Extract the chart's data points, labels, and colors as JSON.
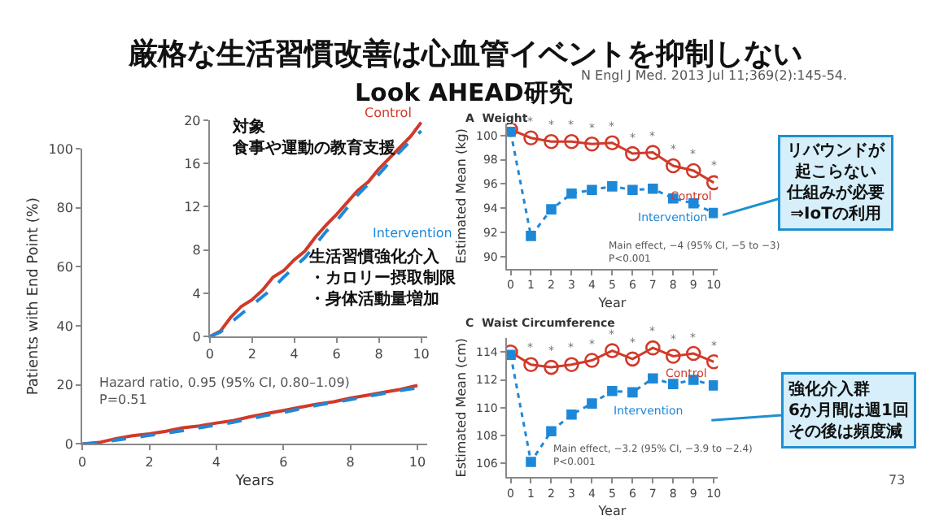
{
  "chart_data": [
    {
      "type": "line",
      "title": "厳格な生活習慣改善は心血管イベントを抑制しない",
      "subtitle": "Look AHEAD研究",
      "xlabel": "Years",
      "ylabel": "Patients with End Point (%)",
      "xlim": [
        0,
        10.3
      ],
      "ylim": [
        0,
        100
      ],
      "xticks": [
        0,
        2,
        4,
        6,
        8,
        10
      ],
      "yticks": [
        0,
        20,
        40,
        60,
        80,
        100
      ],
      "grid": false,
      "legend": false,
      "marker": "none",
      "annotations": [
        "N Engl J Med. 2013 Jul 11;369(2):145-54.",
        "73",
        "Hazard ratio, 0.95 (95% CI, 0.80–1.09)\nP=0.51"
      ],
      "x": [
        0,
        0.5,
        1,
        1.5,
        2,
        2.5,
        3,
        3.5,
        4,
        4.5,
        5,
        5.5,
        6,
        6.5,
        7,
        7.5,
        8,
        8.5,
        9,
        9.5,
        10
      ],
      "series": [
        {
          "color": "#d03a2a",
          "line_style": "solid",
          "values": [
            0,
            0.5,
            1.8,
            2.8,
            3.4,
            4.3,
            5.5,
            6.1,
            7.1,
            7.9,
            9.2,
            10.3,
            11.3,
            12.4,
            13.5,
            14.3,
            15.5,
            16.5,
            17.5,
            18.5,
            19.8
          ]
        },
        {
          "color": "#1e88d8",
          "line_style": "dashed",
          "values": [
            0,
            0.4,
            1.3,
            2.1,
            2.9,
            3.7,
            4.5,
            5.5,
            6.4,
            7.3,
            8.5,
            9.7,
            10.7,
            11.9,
            13.1,
            14.1,
            15.0,
            16.1,
            17.1,
            18.1,
            19.0
          ]
        }
      ]
    },
    {
      "type": "line",
      "xlim": [
        0,
        10.3
      ],
      "ylim": [
        0,
        20
      ],
      "xticks": [
        0,
        2,
        4,
        6,
        8,
        10
      ],
      "yticks": [
        0,
        4,
        8,
        12,
        16,
        20
      ],
      "grid": false,
      "legend": false,
      "marker": "none",
      "annotations": [
        "対象食事や運動の教育支援",
        "生活習慣強化介入・カロリー摂取制限・身体活動量増加"
      ],
      "x": [
        0,
        0.5,
        1,
        1.5,
        2,
        2.5,
        3,
        3.5,
        4,
        4.5,
        5,
        5.5,
        6,
        6.5,
        7,
        7.5,
        8,
        8.5,
        9,
        9.5,
        10
      ],
      "series": [
        {
          "name": "Control",
          "color": "#d03a2a",
          "line_style": "solid",
          "values": [
            0,
            0.5,
            1.8,
            2.8,
            3.4,
            4.3,
            5.5,
            6.1,
            7.1,
            7.9,
            9.2,
            10.3,
            11.3,
            12.4,
            13.5,
            14.3,
            15.5,
            16.5,
            17.5,
            18.5,
            19.8
          ]
        },
        {
          "name": "Intervention",
          "color": "#1e88d8",
          "line_style": "dashed",
          "values": [
            0,
            0.4,
            1.3,
            2.1,
            2.9,
            3.7,
            4.5,
            5.5,
            6.4,
            7.3,
            8.5,
            9.7,
            10.7,
            11.9,
            13.1,
            14.1,
            15.0,
            16.1,
            17.1,
            18.1,
            19.0
          ]
        }
      ]
    },
    {
      "type": "line",
      "title": "A  Weight",
      "xlabel": "Year",
      "ylabel": "Estimated Mean (kg)",
      "xlim": [
        -0.2,
        10.2
      ],
      "ylim": [
        89,
        101
      ],
      "xticks": [
        0,
        1,
        2,
        3,
        4,
        5,
        6,
        7,
        8,
        9,
        10
      ],
      "yticks": [
        90,
        92,
        94,
        96,
        98,
        100
      ],
      "grid": false,
      "legend": false,
      "annotations": [
        "Main effect, −4 (95% CI, −5 to −3)\nP<0.001",
        "リバウンドが起こらない仕組みが必要⇒IoTの利用",
        "*",
        "*",
        "*",
        "*",
        "*",
        "*",
        "*",
        "*",
        "*",
        "*"
      ],
      "x": [
        0,
        1,
        2,
        3,
        4,
        5,
        6,
        7,
        8,
        9,
        10
      ],
      "series": [
        {
          "name": "Control",
          "color": "#d03a2a",
          "line_style": "solid",
          "marker": "circle",
          "values": [
            100.5,
            99.8,
            99.5,
            99.5,
            99.3,
            99.4,
            98.5,
            98.6,
            97.5,
            97.1,
            96.1
          ]
        },
        {
          "name": "Intervention",
          "color": "#1e88d8",
          "line_style": "dotted",
          "marker": "square",
          "values": [
            100.3,
            91.7,
            93.9,
            95.2,
            95.5,
            95.8,
            95.5,
            95.6,
            94.8,
            94.4,
            93.6
          ]
        }
      ]
    },
    {
      "type": "line",
      "title": "C  Waist Circumference",
      "xlabel": "Year",
      "ylabel": "Estimated Mean (cm)",
      "xlim": [
        -0.2,
        10.2
      ],
      "ylim": [
        105,
        115
      ],
      "xticks": [
        0,
        1,
        2,
        3,
        4,
        5,
        6,
        7,
        8,
        9,
        10
      ],
      "yticks": [
        106,
        108,
        110,
        112,
        114
      ],
      "grid": false,
      "legend": false,
      "annotations": [
        "Main effect, −3.2 (95% CI, −3.9 to −2.4)\nP<0.001",
        "強化介入群6か月間は週1回その後は頻度減",
        "*",
        "*",
        "*",
        "*",
        "*",
        "*",
        "*",
        "*",
        "*",
        "*"
      ],
      "x": [
        0,
        1,
        2,
        3,
        4,
        5,
        6,
        7,
        8,
        9,
        10
      ],
      "series": [
        {
          "name": "Control",
          "color": "#d03a2a",
          "line_style": "solid",
          "marker": "circle",
          "values": [
            114.0,
            113.1,
            112.9,
            113.1,
            113.4,
            114.1,
            113.5,
            114.3,
            113.7,
            113.9,
            113.3
          ]
        },
        {
          "name": "Intervention",
          "color": "#1e88d8",
          "line_style": "dotted",
          "marker": "square",
          "values": [
            113.8,
            106.1,
            108.3,
            109.5,
            110.3,
            111.2,
            111.1,
            112.1,
            111.7,
            112.0,
            111.6
          ]
        }
      ]
    }
  ]
}
